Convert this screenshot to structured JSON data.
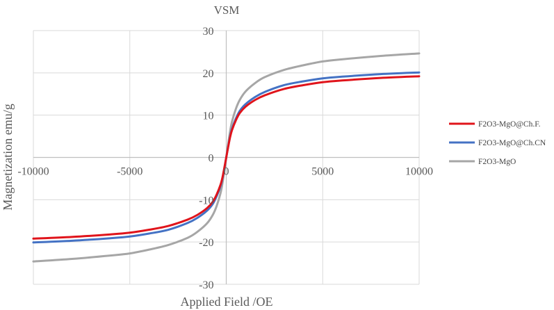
{
  "chart_data": {
    "type": "line",
    "title": "VSM",
    "xlabel": "Applied Field /OE",
    "ylabel": "Magnetization emu/g",
    "xlim": [
      -10000,
      10000
    ],
    "ylim": [
      -30,
      30
    ],
    "x_ticks": [
      -10000,
      -5000,
      0,
      5000,
      10000
    ],
    "y_ticks": [
      -30,
      -20,
      -10,
      0,
      10,
      20,
      30
    ],
    "grid": true,
    "legend_position": "right",
    "series": [
      {
        "name": "F2O3-MgO@Ch.F.",
        "color": "#e0141b",
        "x": [
          -10000,
          -8000,
          -6000,
          -5000,
          -4000,
          -3000,
          -2000,
          -1500,
          -1000,
          -700,
          -500,
          -300,
          -200,
          -100,
          0,
          100,
          200,
          300,
          500,
          700,
          1000,
          1500,
          2000,
          3000,
          4000,
          5000,
          6000,
          8000,
          10000
        ],
        "y": [
          -19.2,
          -18.8,
          -18.2,
          -17.8,
          -17.1,
          -16.2,
          -14.7,
          -13.6,
          -12.0,
          -10.5,
          -8.8,
          -6.5,
          -4.8,
          -2.5,
          0,
          2.5,
          4.8,
          6.5,
          8.8,
          10.5,
          12.0,
          13.6,
          14.7,
          16.2,
          17.1,
          17.8,
          18.2,
          18.8,
          19.2
        ]
      },
      {
        "name": "F2O3-MgO@Ch.CN",
        "color": "#4472c4",
        "x": [
          -10000,
          -8000,
          -6000,
          -5000,
          -4000,
          -3000,
          -2000,
          -1500,
          -1000,
          -700,
          -500,
          -300,
          -200,
          -100,
          0,
          100,
          200,
          300,
          500,
          700,
          1000,
          1500,
          2000,
          3000,
          4000,
          5000,
          6000,
          8000,
          10000
        ],
        "y": [
          -20.1,
          -19.7,
          -19.1,
          -18.7,
          -18.0,
          -17.1,
          -15.5,
          -14.3,
          -12.6,
          -11.0,
          -9.2,
          -6.8,
          -5.0,
          -2.6,
          0,
          2.6,
          5.0,
          6.8,
          9.2,
          11.0,
          12.6,
          14.3,
          15.5,
          17.1,
          18.0,
          18.7,
          19.1,
          19.7,
          20.1
        ]
      },
      {
        "name": "F2O3-MgO",
        "color": "#a6a6a6",
        "x": [
          -10000,
          -8000,
          -6000,
          -5000,
          -4000,
          -3000,
          -2000,
          -1500,
          -1000,
          -700,
          -500,
          -300,
          -200,
          -100,
          0,
          100,
          200,
          300,
          500,
          700,
          1000,
          1500,
          2000,
          3000,
          4000,
          5000,
          6000,
          8000,
          10000
        ],
        "y": [
          -24.6,
          -24.0,
          -23.2,
          -22.7,
          -21.8,
          -20.7,
          -19.0,
          -17.6,
          -15.6,
          -13.6,
          -11.5,
          -8.5,
          -6.2,
          -3.2,
          0,
          3.2,
          6.2,
          8.5,
          11.5,
          13.6,
          15.6,
          17.6,
          19.0,
          20.7,
          21.8,
          22.7,
          23.2,
          24.0,
          24.6
        ]
      }
    ]
  }
}
